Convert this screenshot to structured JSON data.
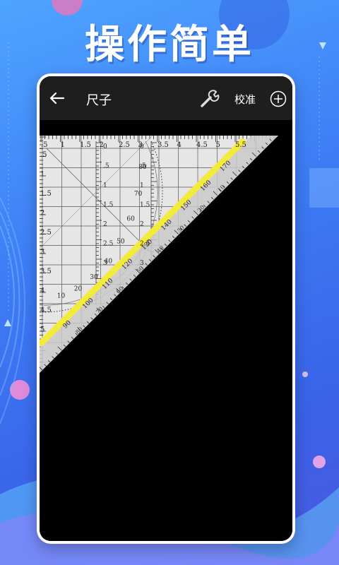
{
  "promo": {
    "headline": "操作简单"
  },
  "appbar": {
    "title": "尺子",
    "calibrate_label": "校准"
  },
  "ruler": {
    "top_scale_labels": [
      ".5",
      "1",
      "1.5",
      "2",
      "2.5",
      "3",
      "3.5",
      "4",
      "4.5",
      "5",
      "5.5"
    ],
    "left_scale_labels": [
      ".5",
      "1",
      "1.5",
      "2",
      "2.5",
      "3",
      "3.5",
      "4",
      "4.5",
      "5"
    ],
    "inner_scale_labels": [
      "0",
      ".5",
      "1",
      "1.5",
      "2",
      "2.5",
      "3"
    ],
    "inner_scale2_labels": [
      "0",
      ".5",
      "1",
      "1.5",
      "2",
      "2.5",
      "3"
    ],
    "protractor_labels": [
      "10",
      "20",
      "30",
      "40",
      "50",
      "60",
      "70",
      "80"
    ],
    "diagonal_scale_labels": [
      "90",
      "100",
      "110",
      "120",
      "130",
      "140",
      "150",
      "160",
      "170"
    ],
    "diagonal_scale_labels_inner": [
      "80",
      "70",
      "60",
      "50",
      "40",
      "30",
      "20",
      "10"
    ],
    "hypotenuse_color": "#f4ea3a"
  }
}
